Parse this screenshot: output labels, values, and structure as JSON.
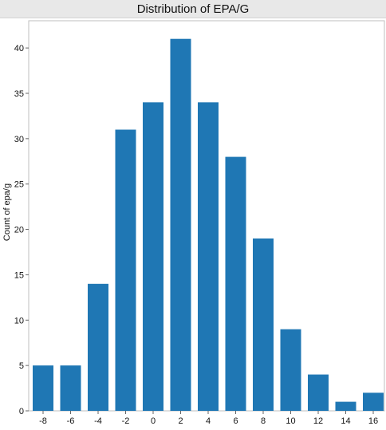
{
  "chart_data": {
    "type": "bar",
    "title": "Distribution of EPA/G",
    "xlabel": "",
    "ylabel": "Count of epa/g",
    "categories": [
      "-8",
      "-6",
      "-4",
      "-2",
      "0",
      "2",
      "4",
      "6",
      "8",
      "10",
      "12",
      "14",
      "16"
    ],
    "values": [
      5,
      5,
      14,
      31,
      34,
      41,
      34,
      28,
      19,
      9,
      4,
      1,
      2
    ],
    "ylim": [
      0,
      43
    ],
    "yticks": [
      0,
      5,
      10,
      15,
      20,
      25,
      30,
      35,
      40
    ],
    "grid": false,
    "bar_color": "#1f77b4"
  }
}
